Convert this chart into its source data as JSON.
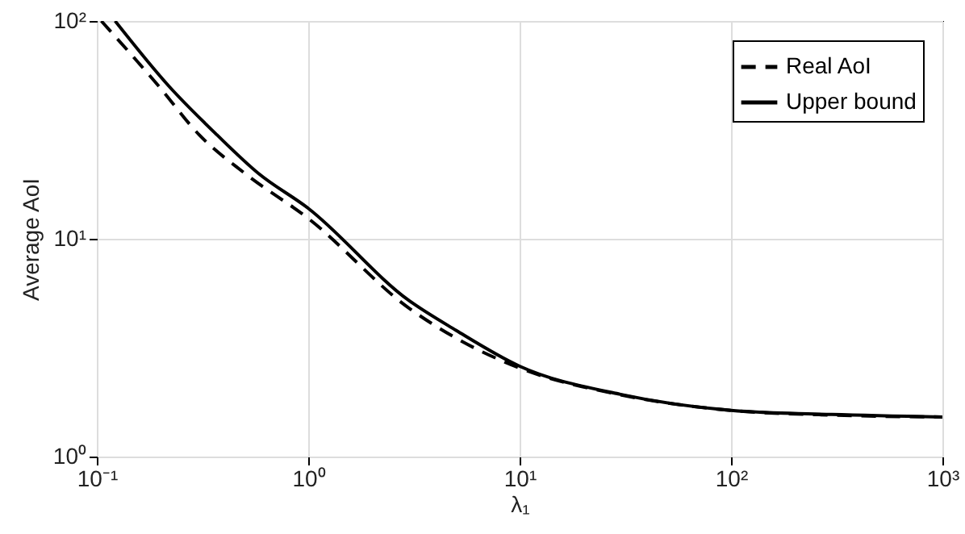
{
  "chart_data": {
    "type": "line",
    "xlabel": "λ₁",
    "ylabel": "Average AoI",
    "log": "xy",
    "grid": true,
    "legend": "top right",
    "xlim": [
      0.1,
      1000
    ],
    "ylim": [
      1,
      100
    ],
    "xticks": [
      {
        "value": 0.1,
        "label": "10⁻¹"
      },
      {
        "value": 1,
        "label": "10⁰"
      },
      {
        "value": 10,
        "label": "10¹"
      },
      {
        "value": 100,
        "label": "10²"
      },
      {
        "value": 1000,
        "label": "10³"
      }
    ],
    "yticks": [
      {
        "value": 1,
        "label": "10⁰"
      },
      {
        "value": 10,
        "label": "10¹"
      },
      {
        "value": 100,
        "label": "10²"
      }
    ],
    "series": [
      {
        "name": "Real AoI",
        "color": "#000000",
        "line_style": "dashed",
        "x": [
          0.105,
          0.197,
          0.305,
          0.5,
          1,
          3,
          5,
          10,
          30,
          100,
          300,
          1000
        ],
        "values": [
          100,
          50,
          30,
          20,
          12.4,
          4.8,
          3.5,
          2.55,
          1.92,
          1.63,
          1.55,
          1.52
        ]
      },
      {
        "name": "Upper bound",
        "color": "#000000",
        "line_style": "solid",
        "x": [
          0.122,
          0.22,
          0.37,
          0.58,
          1,
          3,
          5,
          10,
          30,
          100,
          300,
          1000
        ],
        "values": [
          100,
          50,
          30,
          20,
          13.8,
          5.2,
          3.8,
          2.6,
          1.93,
          1.63,
          1.56,
          1.52
        ]
      }
    ]
  }
}
